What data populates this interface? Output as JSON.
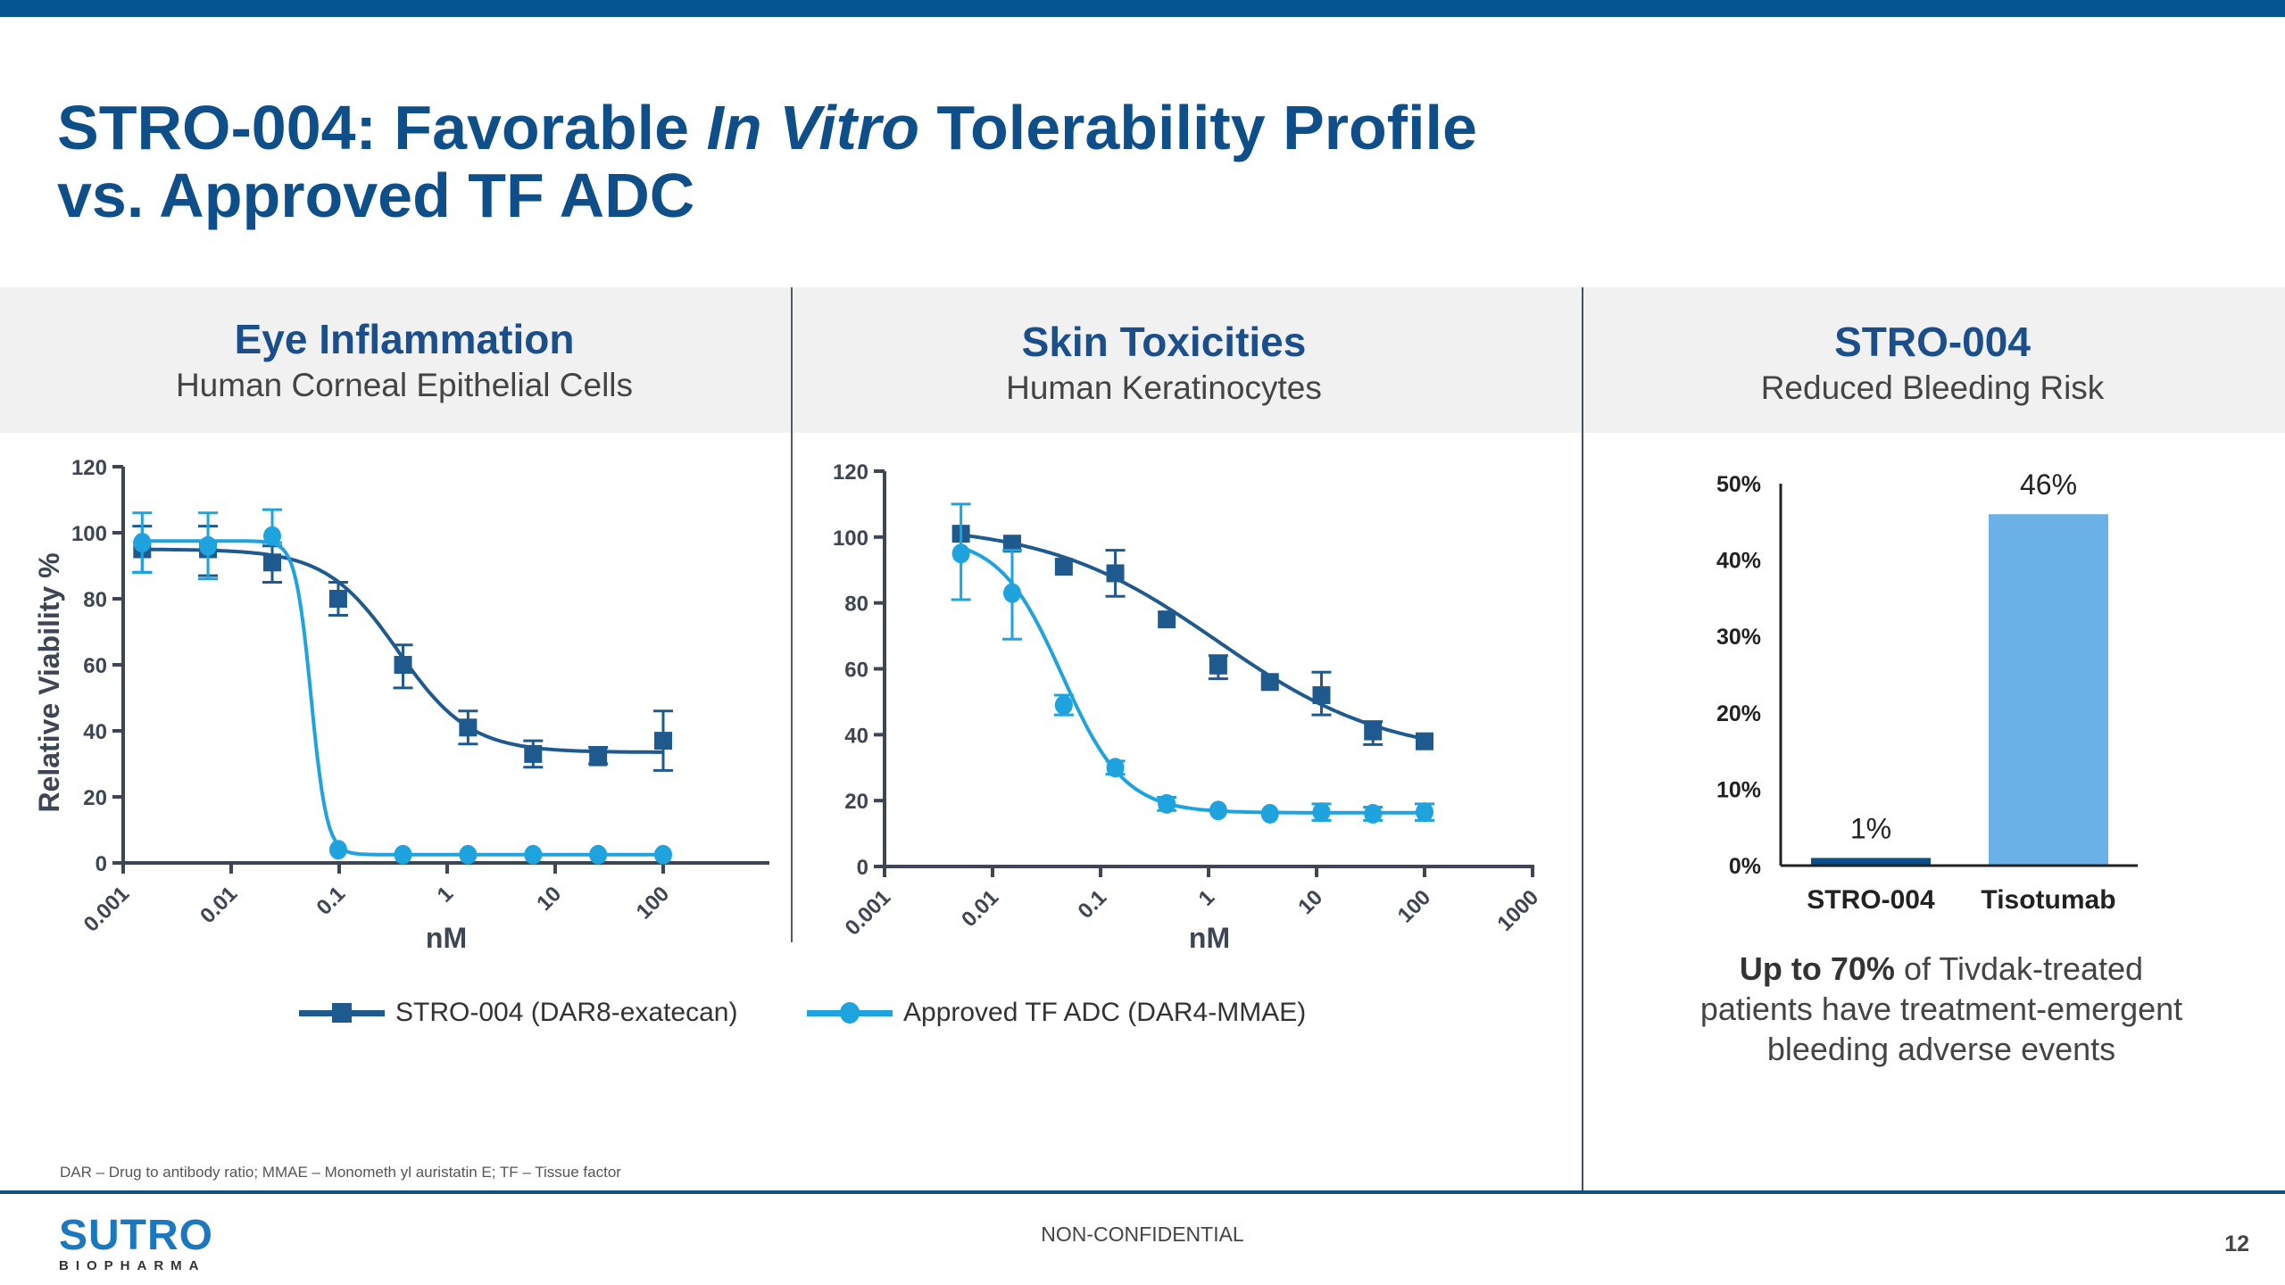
{
  "slide": {
    "title_part1": "STRO-004: Favorable ",
    "title_italic": "In Vitro",
    "title_part2": " Tolerability Profile",
    "title_line2": "vs. Approved TF ADC",
    "page_number": "12",
    "confidentiality": "NON-CONFIDENTIAL",
    "footnote": "DAR – Drug to antibody ratio; MMAE – Monometh yl auristatin E; TF – Tissue factor",
    "logo": {
      "word": "SUTRO",
      "sub": "BIOPHARMA"
    },
    "colors": {
      "brand_blue": "#04558f",
      "title_blue": "#0e4f8a",
      "stro004": "#1f5a8e",
      "tf_adc": "#1ea3df",
      "bar_stro004": "#0b4f86",
      "bar_tisotumab": "#6ab1e7"
    }
  },
  "panels": [
    {
      "heading": "Eye Inflammation",
      "subheading": "Human Corneal Epithelial Cells"
    },
    {
      "heading": "Skin Toxicities",
      "subheading": "Human Keratinocytes"
    },
    {
      "heading": "STRO-004",
      "subheading": "Reduced Bleeding Risk"
    }
  ],
  "legend": [
    {
      "label": "STRO-004 (DAR8-exatecan)",
      "marker": "square"
    },
    {
      "label": "Approved TF ADC (DAR4-MMAE)",
      "marker": "circle"
    }
  ],
  "note": {
    "bold": "Up to 70%",
    "rest_line1": " of Tivdak-treated",
    "line2": "patients have treatment-emergent",
    "line3": "bleeding adverse events"
  },
  "chart_data": [
    {
      "type": "scatter",
      "title": "Eye Inflammation – Human Corneal Epithelial Cells",
      "xlabel": "nM",
      "ylabel": "Relative Viability %",
      "xscale": "log",
      "xlim": [
        0.001,
        100
      ],
      "x_ticks": [
        "0.001",
        "0.01",
        "0.1",
        "1",
        "10",
        "100"
      ],
      "ylim": [
        0,
        120
      ],
      "y_ticks": [
        "0",
        "20",
        "40",
        "60",
        "80",
        "100",
        "120"
      ],
      "grid": false,
      "x": [
        0.0015,
        0.0061,
        0.024,
        0.098,
        0.39,
        1.56,
        6.25,
        25,
        100
      ],
      "series": [
        {
          "name": "STRO-004 (DAR8-exatecan)",
          "marker": "square",
          "values": [
            95,
            95,
            91,
            80,
            60,
            41,
            33,
            32,
            37
          ],
          "err_low": [
            88,
            87,
            85,
            75,
            53,
            36,
            29,
            30,
            28
          ],
          "err_high": [
            102,
            102,
            96,
            85,
            66,
            46,
            37,
            35,
            46
          ],
          "fit": {
            "top": 95,
            "bottom": 33.5,
            "ec50": 0.35,
            "hill": 1.3
          }
        },
        {
          "name": "Approved TF ADC (DAR4-MMAE)",
          "marker": "circle",
          "values": [
            97,
            96,
            99,
            4,
            2.5,
            2.5,
            2.5,
            2.5,
            2.5
          ],
          "err_low": [
            88,
            86,
            97,
            null,
            null,
            null,
            null,
            null,
            null
          ],
          "err_high": [
            106,
            106,
            107,
            null,
            null,
            null,
            null,
            null,
            null
          ],
          "fit": {
            "top": 97.5,
            "bottom": 2.5,
            "ec50": 0.055,
            "hill": 6
          }
        }
      ]
    },
    {
      "type": "scatter",
      "title": "Skin Toxicities – Human Keratinocytes",
      "xlabel": "nM",
      "ylabel": "",
      "xscale": "log",
      "xlim": [
        0.001,
        1000
      ],
      "x_ticks": [
        "0.001",
        "0.01",
        "0.1",
        "1",
        "10",
        "100",
        "1000"
      ],
      "ylim": [
        0,
        120
      ],
      "y_ticks": [
        "0",
        "20",
        "40",
        "60",
        "80",
        "100",
        "120"
      ],
      "grid": false,
      "x": [
        0.0051,
        0.0152,
        0.0457,
        0.137,
        0.41,
        1.23,
        3.7,
        11.1,
        33.3,
        100
      ],
      "series": [
        {
          "name": "STRO-004 (DAR8-exatecan)",
          "marker": "square",
          "values": [
            101,
            98,
            91,
            89,
            75,
            61,
            56,
            52,
            41,
            38
          ],
          "err_low": [
            null,
            null,
            null,
            82,
            null,
            57,
            null,
            46,
            37,
            null
          ],
          "err_high": [
            null,
            null,
            null,
            96,
            null,
            64,
            null,
            59,
            44,
            null
          ],
          "fit": {
            "top": 104,
            "bottom": 33,
            "ec50": 1.2,
            "hill": 0.55
          }
        },
        {
          "name": "Approved TF ADC (DAR4-MMAE)",
          "marker": "circle",
          "values": [
            95,
            83,
            49,
            30,
            19,
            17,
            16,
            16.5,
            16,
            16.5
          ],
          "err_low": [
            81,
            69,
            46,
            28,
            17,
            null,
            null,
            14,
            14,
            14
          ],
          "err_high": [
            110,
            96,
            52,
            32,
            21,
            null,
            null,
            19,
            18,
            19
          ],
          "fit": {
            "top": 100,
            "bottom": 16.3,
            "ec50": 0.044,
            "hill": 1.5
          }
        }
      ]
    },
    {
      "type": "bar",
      "title": "STRO-004 Reduced Bleeding Risk",
      "categories": [
        "STRO-004",
        "Tisotumab"
      ],
      "values": [
        1,
        46
      ],
      "value_labels": [
        "1%",
        "46%"
      ],
      "ylim": [
        0,
        50
      ],
      "y_ticks": [
        "0%",
        "10%",
        "20%",
        "30%",
        "40%",
        "50%"
      ],
      "xlabel": "",
      "ylabel": "",
      "grid": false
    }
  ]
}
